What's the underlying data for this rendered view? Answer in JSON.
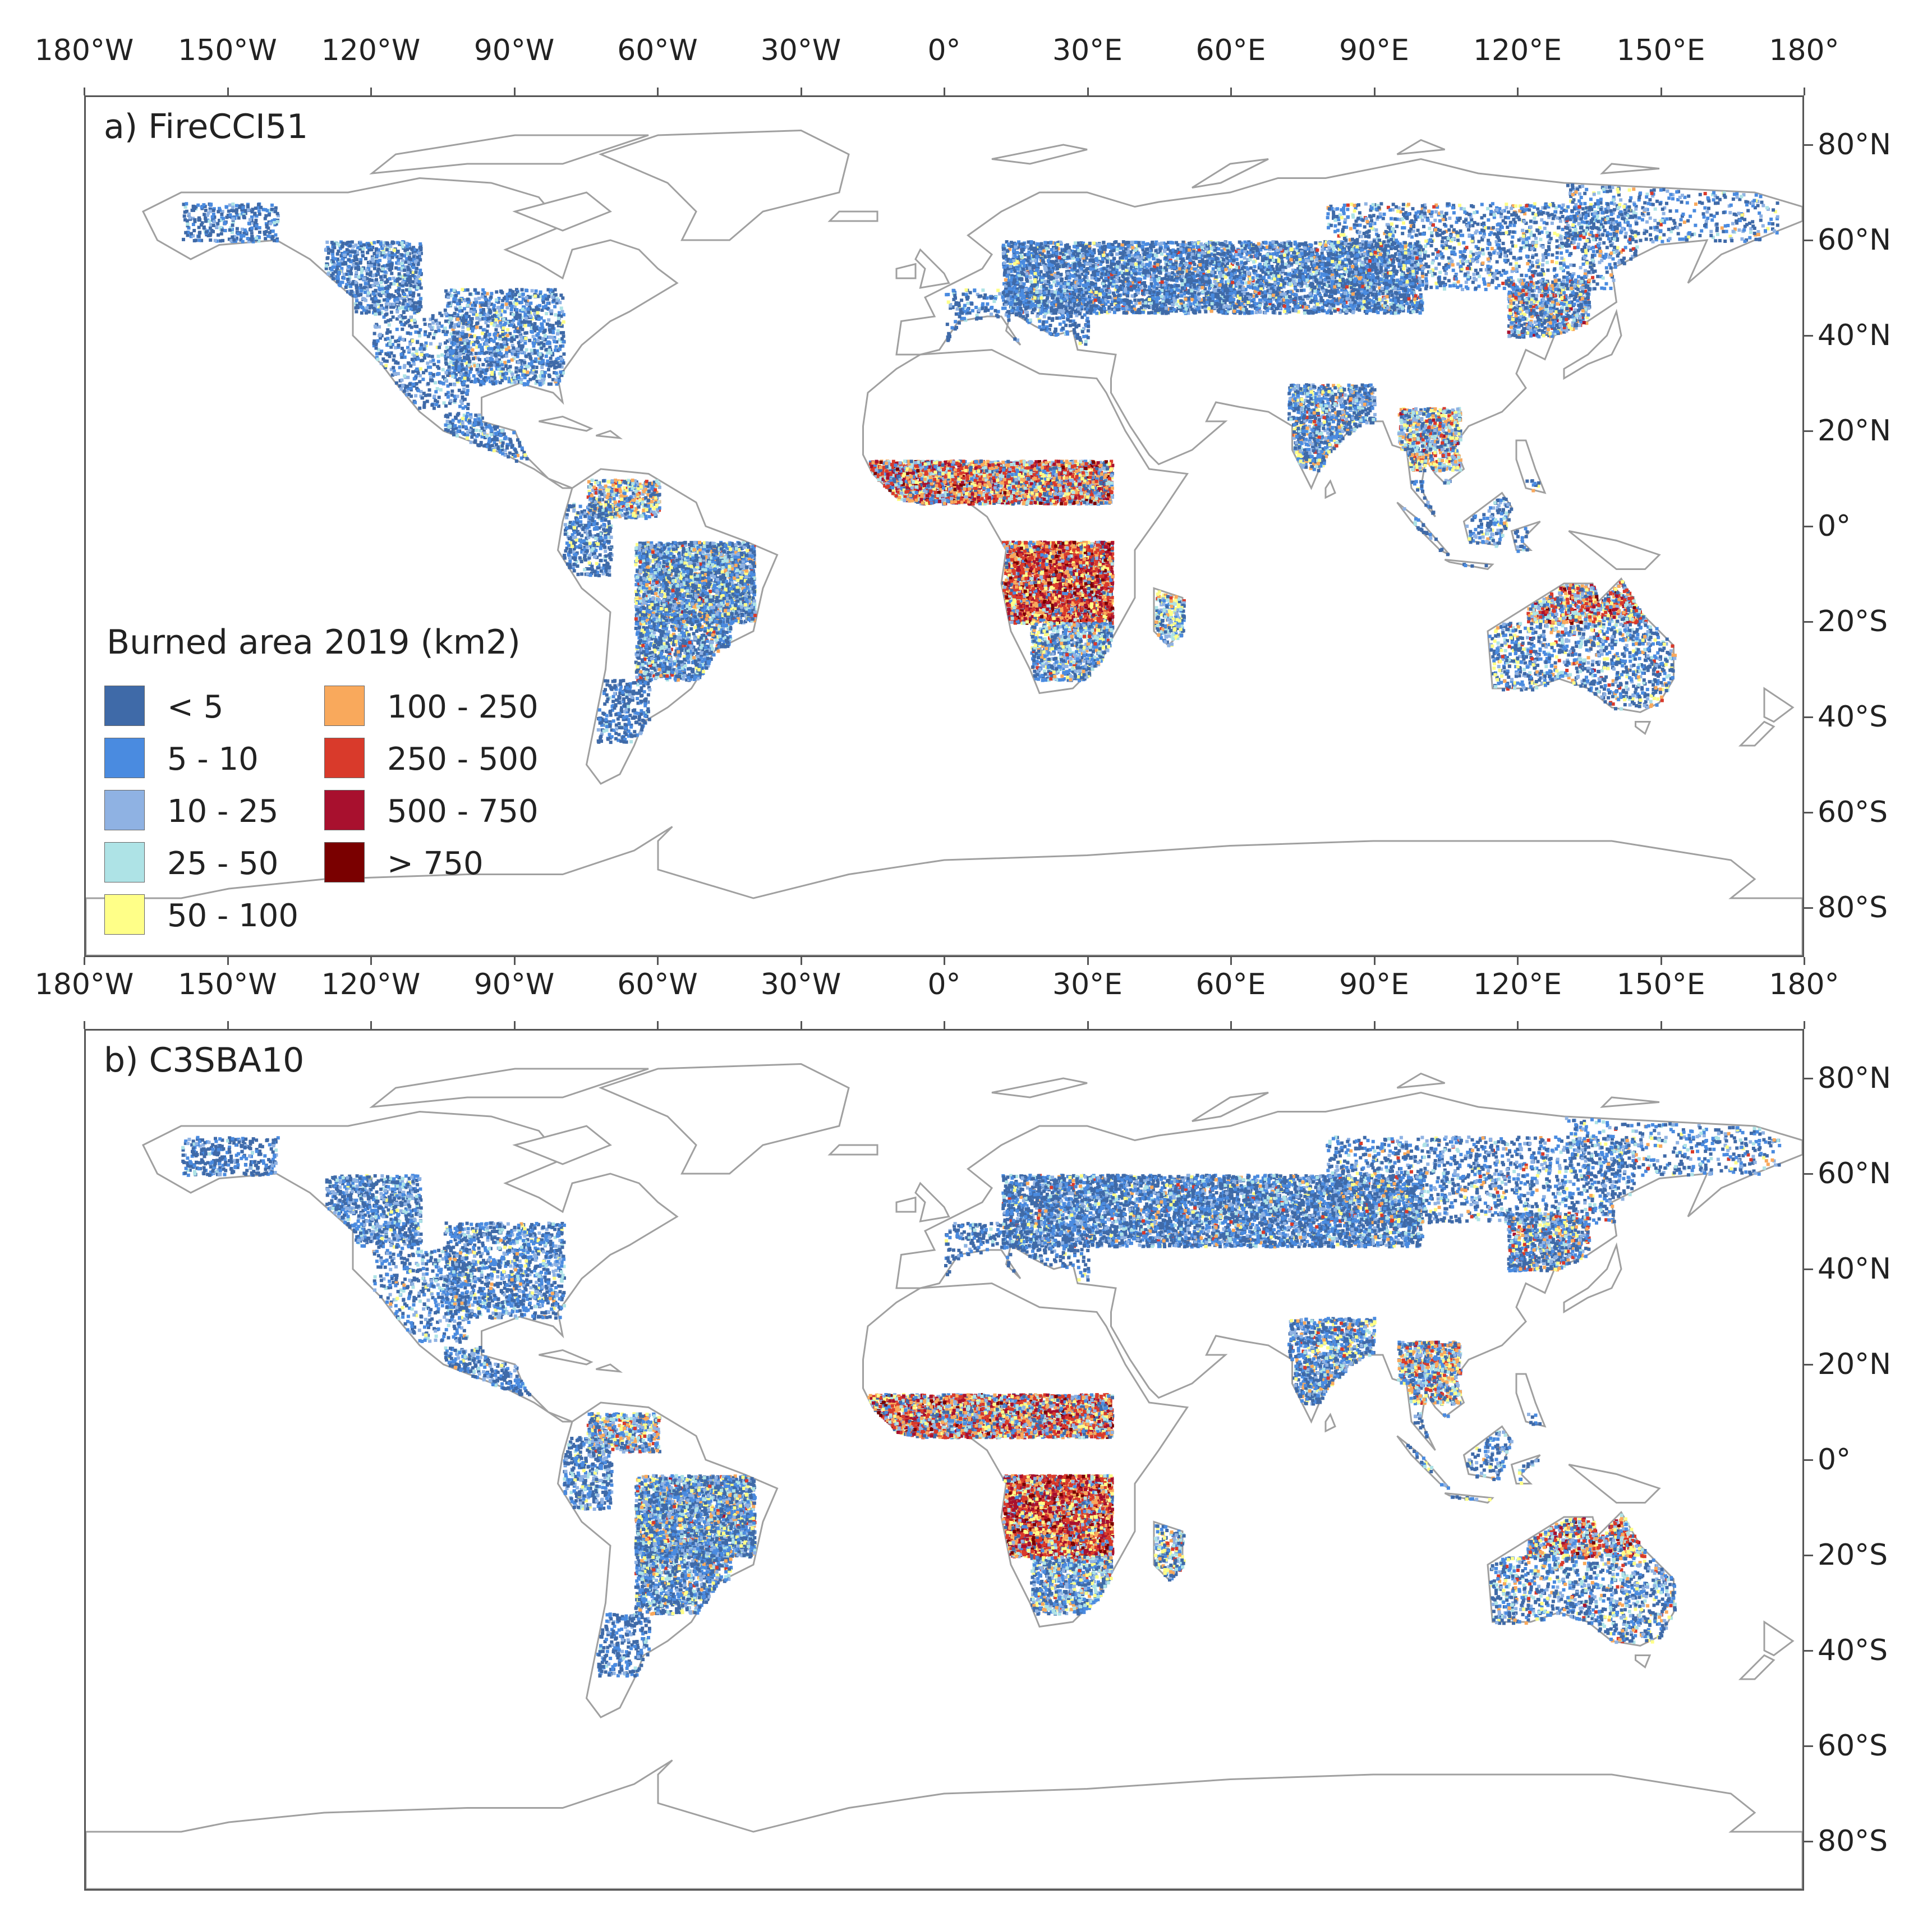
{
  "axes": {
    "lon_labels": [
      "180°W",
      "150°W",
      "120°W",
      "90°W",
      "60°W",
      "30°W",
      "0°",
      "30°E",
      "60°E",
      "90°E",
      "120°E",
      "150°E",
      "180°"
    ],
    "lat_labels": [
      "80°N",
      "60°N",
      "40°N",
      "20°N",
      "0°",
      "20°S",
      "40°S",
      "60°S",
      "80°S"
    ]
  },
  "panels": [
    {
      "label": "a) FireCCI51"
    },
    {
      "label": "b) C3SBA10"
    }
  ],
  "legend": {
    "title": "Burned area 2019 (km2)",
    "items": [
      {
        "label": "< 5",
        "color": "#3f6aa8"
      },
      {
        "label": "5 - 10",
        "color": "#4a8be0"
      },
      {
        "label": "10 - 25",
        "color": "#8fb2e3"
      },
      {
        "label": "25 - 50",
        "color": "#aee3e6"
      },
      {
        "label": "50 - 100",
        "color": "#ffff88"
      },
      {
        "label": "100 - 250",
        "color": "#f9a95c"
      },
      {
        "label": "250 - 500",
        "color": "#d93a2b"
      },
      {
        "label": "500 - 750",
        "color": "#a8102e"
      },
      {
        "label": "> 750",
        "color": "#7a0000"
      }
    ]
  },
  "colors": {
    "coastline": "#a0a0a0",
    "frame": "#555555"
  }
}
